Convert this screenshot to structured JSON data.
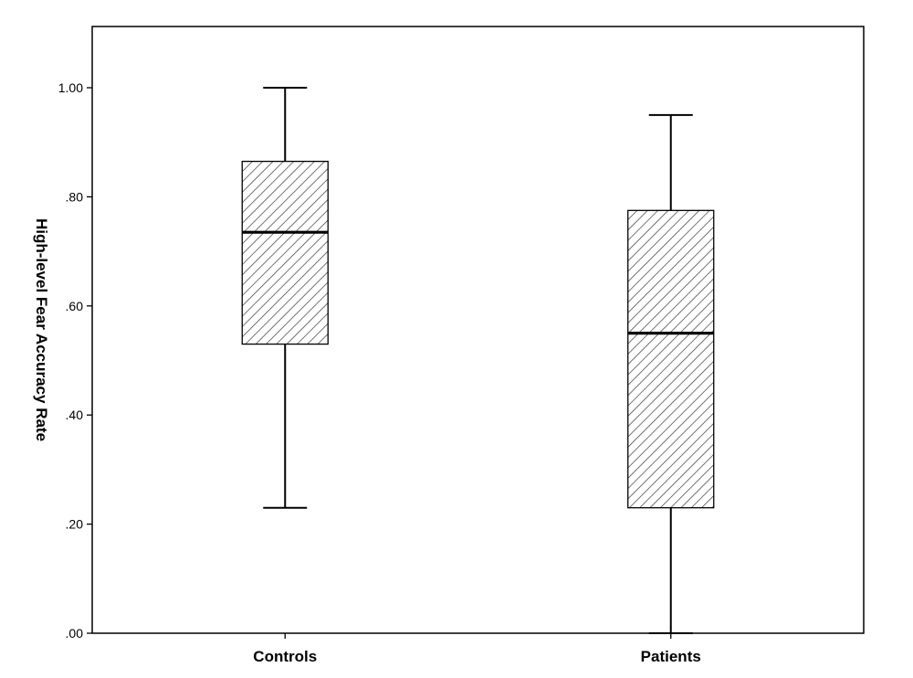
{
  "chart_data": {
    "type": "boxplot",
    "title": "",
    "xlabel": "",
    "ylabel": "High-level Fear Accuracy Rate",
    "ylim": [
      0,
      1.1
    ],
    "yticks": [
      {
        "value": 0.0,
        "label": ".00"
      },
      {
        "value": 0.2,
        "label": ".20"
      },
      {
        "value": 0.4,
        "label": ".40"
      },
      {
        "value": 0.6,
        "label": ".60"
      },
      {
        "value": 0.8,
        "label": ".80"
      },
      {
        "value": 1.0,
        "label": "1.00"
      }
    ],
    "grid": false,
    "fill_pattern": "diagonal-hatch",
    "categories": [
      "Controls",
      "Patients"
    ],
    "boxes": [
      {
        "category": "Controls",
        "min": 0.23,
        "q1": 0.53,
        "median": 0.735,
        "q3": 0.865,
        "max": 1.0
      },
      {
        "category": "Patients",
        "min": 0.0,
        "q1": 0.23,
        "median": 0.55,
        "q3": 0.775,
        "max": 0.95
      }
    ]
  }
}
